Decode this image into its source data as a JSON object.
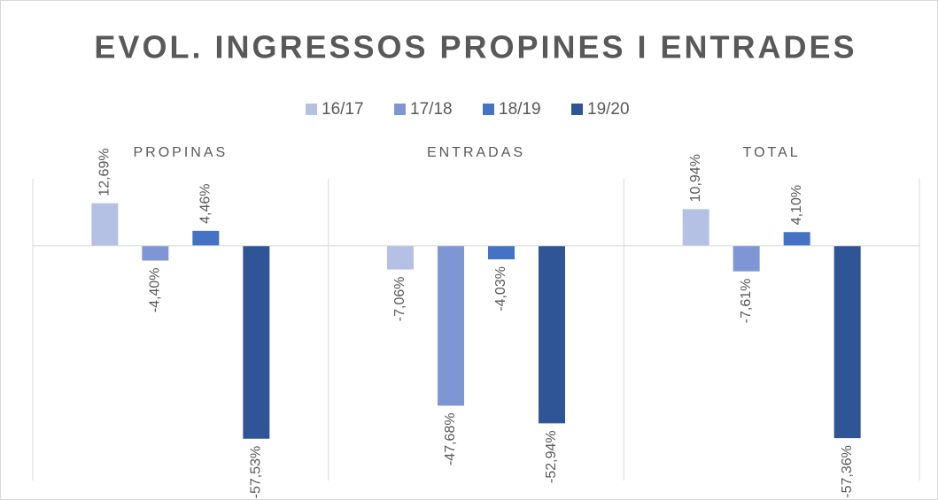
{
  "chart_data": {
    "type": "bar",
    "title": "EVOL. INGRESSOS PROPINES I ENTRADES",
    "categories": [
      "PROPINAS",
      "ENTRADAS",
      "TOTAL"
    ],
    "series": [
      {
        "name": "16/17",
        "color": "#b4c1e4",
        "values": [
          12.69,
          -7.06,
          10.94
        ],
        "value_labels": [
          "12,69%",
          "-7,06%",
          "10,94%"
        ]
      },
      {
        "name": "17/18",
        "color": "#7f96d4",
        "values": [
          -4.4,
          -47.68,
          -7.61
        ],
        "value_labels": [
          "-4,40%",
          "-47,68%",
          "-7,61%"
        ]
      },
      {
        "name": "18/19",
        "color": "#4472c4",
        "values": [
          4.46,
          -4.03,
          4.1
        ],
        "value_labels": [
          "4,46%",
          "-4,03%",
          "4,10%"
        ]
      },
      {
        "name": "19/20",
        "color": "#2f5597",
        "values": [
          -57.53,
          -52.94,
          -57.36
        ],
        "value_labels": [
          "-57,53%",
          "-52,94%",
          "-57,36%"
        ]
      }
    ],
    "ylim": [
      -70,
      20
    ],
    "legend": "top"
  }
}
